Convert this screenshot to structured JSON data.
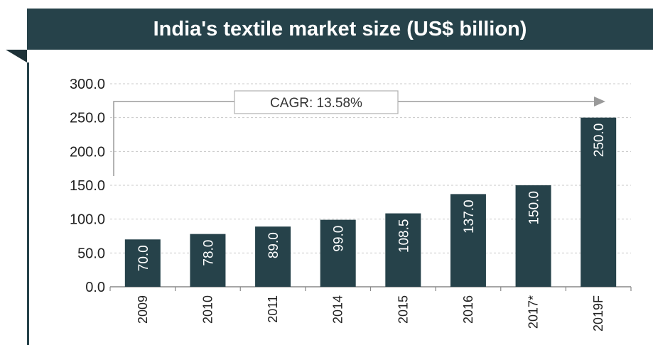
{
  "chart_data": {
    "type": "bar",
    "title": "India's textile market size (US$ billion)",
    "categories": [
      "2009",
      "2010",
      "2011",
      "2014",
      "2015",
      "2016",
      "2017*",
      "2019F"
    ],
    "values": [
      70.0,
      78.0,
      89.0,
      99.0,
      108.5,
      137.0,
      150.0,
      250.0
    ],
    "value_labels": [
      "70.0",
      "78.0",
      "89.0",
      "99.0",
      "108.5",
      "137.0",
      "150.0",
      "250.0"
    ],
    "ylim": [
      0,
      300
    ],
    "yticks": [
      "0.0",
      "50.0",
      "100.0",
      "150.0",
      "200.0",
      "250.0",
      "300.0"
    ],
    "xlabel": "",
    "ylabel": "",
    "grid": true,
    "bar_color": "#26424a",
    "annotation": "CAGR: 13.58%"
  }
}
